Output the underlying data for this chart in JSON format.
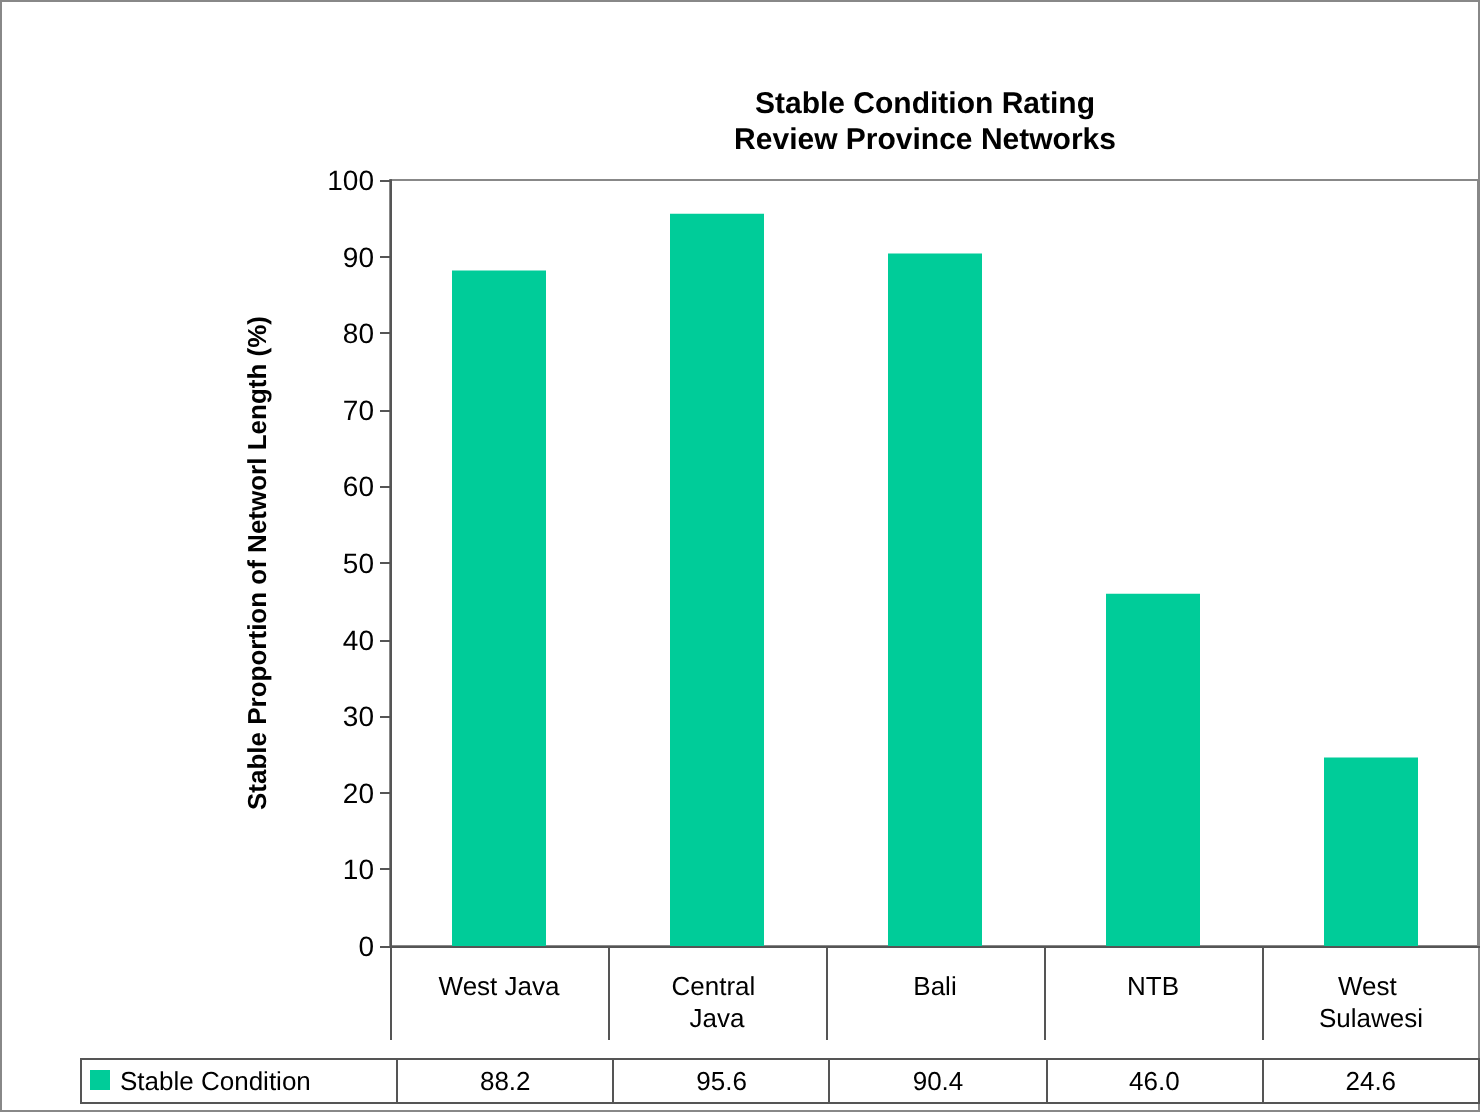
{
  "chart_data": {
    "type": "bar",
    "title": "Stable Condition Rating\nReview Province Networks",
    "ylabel": "Stable Proportion of Networl Length (%)",
    "categories": [
      "West Java",
      "Central Java",
      "Bali",
      "NTB",
      "West Sulawesi"
    ],
    "series": [
      {
        "name": "Stable Condition",
        "color": "#00cc99",
        "values": [
          88.2,
          95.6,
          90.4,
          46.0,
          24.6
        ],
        "value_labels": [
          "88.2",
          "95.6",
          "90.4",
          "46.0",
          "24.6"
        ]
      }
    ],
    "ylim": [
      0,
      100
    ],
    "yticks": [
      0,
      10,
      20,
      30,
      40,
      50,
      60,
      70,
      80,
      90,
      100
    ],
    "grid": false,
    "legend": "bottom left"
  }
}
